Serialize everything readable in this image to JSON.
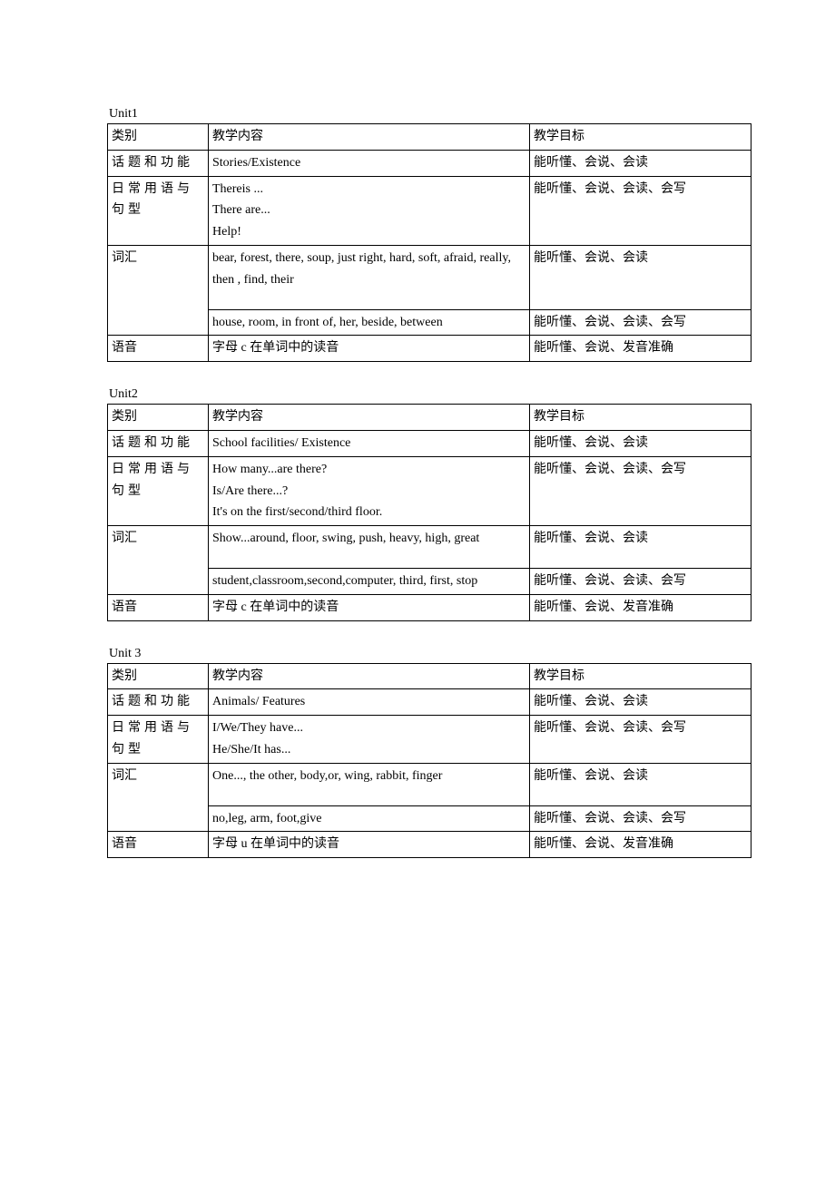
{
  "units": [
    {
      "title": "Unit1",
      "header": {
        "c1": "类别",
        "c2": "教学内容",
        "c3": "教学目标"
      },
      "rows": [
        {
          "c1": "话题和功能",
          "c1_wide": true,
          "c2": "Stories/Existence",
          "c3": "能听懂、会说、会读"
        },
        {
          "c1": "日常用语与句型",
          "c1_wide": true,
          "c2": "Thereis ...\nThere are...\nHelp!",
          "c3": "能听懂、会说、会读、会写"
        },
        {
          "c1": "词汇",
          "c2": "bear, forest, there, soup, just right, hard, soft, afraid, really, then , find, their",
          "c3": "能听懂、会说、会读",
          "tall": true
        },
        {
          "c1_skip": true,
          "c2": "house, room, in front of, her, beside, between",
          "c3": "能听懂、会说、会读、会写"
        },
        {
          "c1": "语音",
          "c2": "字母 c 在单词中的读音",
          "c3": "能听懂、会说、发音准确"
        }
      ]
    },
    {
      "title": "Unit2",
      "header": {
        "c1": "类别",
        "c2": "教学内容",
        "c3": "教学目标"
      },
      "rows": [
        {
          "c1": "话题和功能",
          "c1_wide": true,
          "c2": "School facilities/ Existence",
          "c3": "能听懂、会说、会读"
        },
        {
          "c1": "日常用语与句型",
          "c1_wide": true,
          "c2": "How many...are there?\nIs/Are there...?\nIt's on the first/second/third floor.",
          "c3": "能听懂、会说、会读、会写"
        },
        {
          "c1": "词汇",
          "c2": "Show...around, floor, swing, push, heavy, high, great",
          "c3": "能听懂、会说、会读",
          "tall": true
        },
        {
          "c1_skip": true,
          "c2": "student,classroom,second,computer,    third, first, stop",
          "c3": "能听懂、会说、会读、会写"
        },
        {
          "c1": "语音",
          "c2": "字母 c 在单词中的读音",
          "c3": "能听懂、会说、发音准确"
        }
      ]
    },
    {
      "title": "Unit 3",
      "header": {
        "c1": "类别",
        "c2": "教学内容",
        "c3": "教学目标"
      },
      "rows": [
        {
          "c1": "话题和功能",
          "c1_wide": true,
          "c2": "Animals/ Features",
          "c3": "能听懂、会说、会读"
        },
        {
          "c1": "日常用语与句型",
          "c1_wide": true,
          "c2": "I/We/They have...\nHe/She/It has...",
          "c3": "能听懂、会说、会读、会写"
        },
        {
          "c1": "词汇",
          "c2": "One..., the other, body,or, wing, rabbit, finger",
          "c3": "能听懂、会说、会读",
          "tall": true
        },
        {
          "c1_skip": true,
          "c2": "no,leg, arm, foot,give",
          "c3": "能听懂、会说、会读、会写"
        },
        {
          "c1": "语音",
          "c2": "字母 u 在单词中的读音",
          "c3": "能听懂、会说、发音准确"
        }
      ]
    }
  ]
}
